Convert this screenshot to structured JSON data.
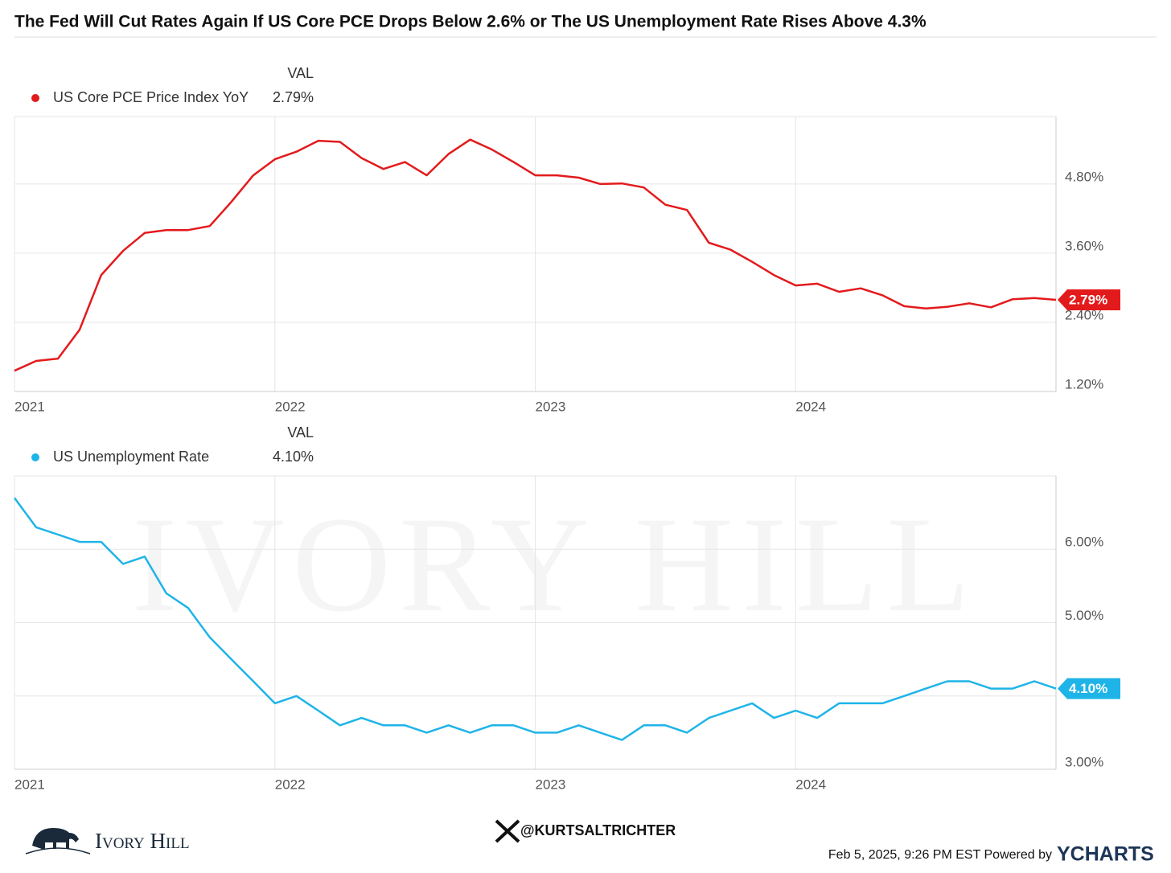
{
  "title": "The Fed Will Cut Rates Again If US Core PCE Drops Below 2.6% or The US Unemployment Rate Rises Above 4.3%",
  "chart_data": [
    {
      "type": "line",
      "legend_header": "VAL",
      "x": [
        2021,
        2021.083,
        2021.167,
        2021.25,
        2021.333,
        2021.417,
        2021.5,
        2021.583,
        2021.667,
        2021.75,
        2021.833,
        2021.917,
        2022,
        2022.083,
        2022.167,
        2022.25,
        2022.333,
        2022.417,
        2022.5,
        2022.583,
        2022.667,
        2022.75,
        2022.833,
        2022.917,
        2023,
        2023.083,
        2023.167,
        2023.25,
        2023.333,
        2023.417,
        2023.5,
        2023.583,
        2023.667,
        2023.75,
        2023.833,
        2023.917,
        2024,
        2024.083,
        2024.167,
        2024.25,
        2024.333,
        2024.417,
        2024.5,
        2024.583,
        2024.667,
        2024.75,
        2024.833,
        2024.917,
        2025
      ],
      "series": [
        {
          "name": "US Core PCE Price Index YoY",
          "color": "#e31a1c",
          "value_label": "2.79%",
          "values": [
            1.56,
            1.73,
            1.77,
            2.27,
            3.22,
            3.64,
            3.95,
            4.0,
            4.0,
            4.07,
            4.49,
            4.95,
            5.23,
            5.36,
            5.55,
            5.53,
            5.25,
            5.06,
            5.18,
            4.95,
            5.32,
            5.57,
            5.4,
            5.18,
            4.95,
            4.95,
            4.91,
            4.8,
            4.81,
            4.74,
            4.44,
            4.35,
            3.78,
            3.66,
            3.45,
            3.22,
            3.04,
            3.07,
            2.93,
            2.99,
            2.87,
            2.68,
            2.64,
            2.67,
            2.73,
            2.66,
            2.8,
            2.82,
            2.79
          ]
        }
      ],
      "xlim": [
        2021,
        2025
      ],
      "xticks": [
        2021,
        2022,
        2023,
        2024
      ],
      "ylim": [
        1.2,
        5.97
      ],
      "yticks": [
        {
          "value": 1.2,
          "label": "1.20%"
        },
        {
          "value": 2.4,
          "label": "2.40%"
        },
        {
          "value": 3.6,
          "label": "3.60%"
        },
        {
          "value": 4.8,
          "label": "4.80%"
        }
      ],
      "grid": true
    },
    {
      "type": "line",
      "legend_header": "VAL",
      "x": [
        2021,
        2021.083,
        2021.167,
        2021.25,
        2021.333,
        2021.417,
        2021.5,
        2021.583,
        2021.667,
        2021.75,
        2021.833,
        2021.917,
        2022,
        2022.083,
        2022.167,
        2022.25,
        2022.333,
        2022.417,
        2022.5,
        2022.583,
        2022.667,
        2022.75,
        2022.833,
        2022.917,
        2023,
        2023.083,
        2023.167,
        2023.25,
        2023.333,
        2023.417,
        2023.5,
        2023.583,
        2023.667,
        2023.75,
        2023.833,
        2023.917,
        2024,
        2024.083,
        2024.167,
        2024.25,
        2024.333,
        2024.417,
        2024.5,
        2024.583,
        2024.667,
        2024.75,
        2024.833,
        2024.917,
        2025
      ],
      "series": [
        {
          "name": "US Unemployment Rate",
          "color": "#1eb4e8",
          "value_label": "4.10%",
          "values": [
            6.7,
            6.3,
            6.2,
            6.1,
            6.1,
            5.8,
            5.9,
            5.4,
            5.2,
            4.8,
            4.5,
            4.2,
            3.9,
            4.0,
            3.8,
            3.6,
            3.7,
            3.6,
            3.6,
            3.5,
            3.6,
            3.5,
            3.6,
            3.6,
            3.5,
            3.5,
            3.6,
            3.5,
            3.4,
            3.6,
            3.6,
            3.5,
            3.7,
            3.8,
            3.9,
            3.7,
            3.8,
            3.7,
            3.9,
            3.9,
            3.9,
            4.0,
            4.1,
            4.2,
            4.2,
            4.1,
            4.1,
            4.2,
            4.1
          ]
        }
      ],
      "xlim": [
        2021,
        2025
      ],
      "xticks": [
        2021,
        2022,
        2023,
        2024
      ],
      "ylim": [
        3,
        7
      ],
      "yticks": [
        {
          "value": 3,
          "label": "3.00%"
        },
        {
          "value": 4,
          "label": "4.00%"
        },
        {
          "value": 5,
          "label": "5.00%"
        },
        {
          "value": 6,
          "label": "6.00%"
        }
      ],
      "grid": true
    }
  ],
  "footer": {
    "brand": "Ivory Hill",
    "handle": "@KURTSALTRICHTER",
    "timestamp": "Feb 5, 2025, 9:26 PM EST Powered by",
    "provider": "YCHARTS"
  }
}
